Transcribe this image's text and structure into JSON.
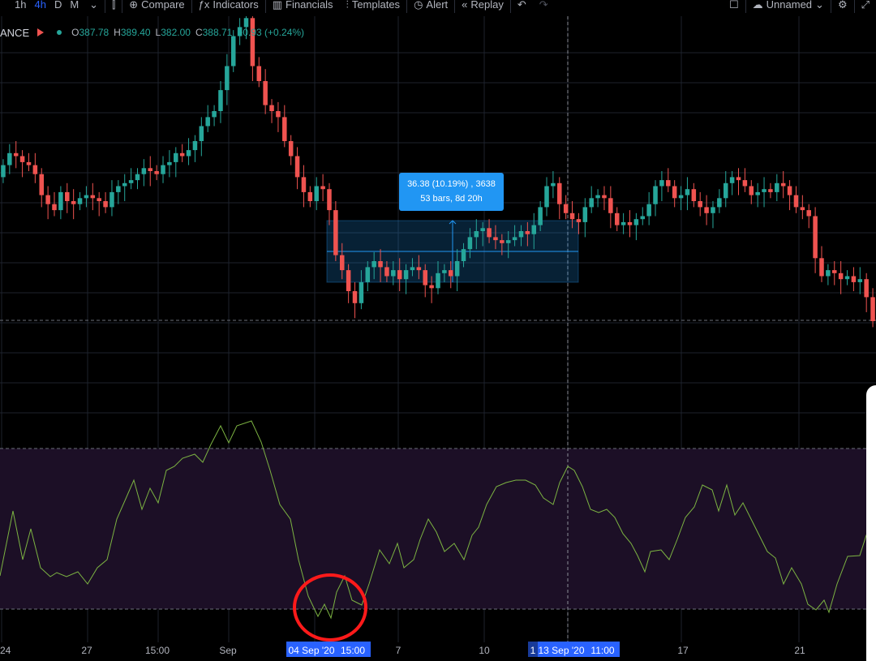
{
  "toolbar": {
    "intervals": [
      "1h",
      "4h",
      "D",
      "M"
    ],
    "active_interval": "4h",
    "compare": "Compare",
    "indicators": "Indicators",
    "financials": "Financials",
    "templates": "Templates",
    "alert": "Alert",
    "replay": "Replay",
    "layout_name": "Unnamed"
  },
  "legend": {
    "symbol": "ANCE",
    "o_label": "O",
    "o": "387.78",
    "h_label": "H",
    "h": "389.40",
    "l_label": "L",
    "l": "382.00",
    "c_label": "C",
    "c": "388.71",
    "change": "+0.93 (+0.24%)"
  },
  "measure": {
    "line1": "36.38 (10.19%) , 3638",
    "line2": "53 bars, 8d 20h"
  },
  "time_axis": {
    "labels": [
      "24",
      "27",
      "15:00",
      "Sep",
      "7",
      "10",
      "17",
      "21"
    ],
    "crosshair_label": "13 Sep '20",
    "crosshair_time": "11:00",
    "highlight_start": "04 Sep '20",
    "highlight_time": "15:00",
    "partial_label": "1"
  },
  "colors": {
    "up": "#26a69a",
    "down": "#ef5350",
    "oscillator": "#7cb342",
    "accent": "#2196f3",
    "circle": "#ff1a1a"
  },
  "chart_data": {
    "type": "candlestick",
    "price": {
      "o": [
        388,
        392,
        396,
        395,
        393,
        392,
        389,
        382,
        379,
        377,
        383,
        380,
        379,
        381,
        382,
        381,
        380,
        378,
        383,
        385,
        386,
        387,
        389,
        391,
        390,
        389,
        392,
        393,
        396,
        395,
        397,
        400,
        405,
        408,
        410,
        417,
        425,
        435,
        438,
        441,
        425,
        420,
        412,
        410,
        408,
        400,
        395,
        388,
        383,
        380,
        385,
        384,
        377,
        362,
        357,
        350,
        346,
        353,
        358,
        360,
        358,
        355,
        357,
        354,
        357,
        358,
        357,
        352,
        351,
        356,
        357,
        355,
        360,
        364,
        368,
        370,
        371,
        368,
        367,
        366,
        367,
        368,
        370,
        369,
        372,
        378,
        385,
        386,
        379,
        376,
        374,
        373,
        378,
        381,
        382,
        381,
        376,
        372,
        373,
        372,
        374,
        375,
        379,
        385,
        387,
        385,
        381,
        382,
        384,
        380,
        378,
        376,
        378,
        381,
        386,
        388,
        387,
        385,
        382,
        383,
        384,
        383,
        386,
        385,
        382,
        378,
        377,
        375,
        361,
        355,
        357,
        356,
        354,
        355,
        353,
        354,
        348
      ],
      "c": [
        392,
        396,
        395,
        393,
        392,
        389,
        382,
        379,
        377,
        383,
        380,
        379,
        381,
        382,
        381,
        380,
        378,
        383,
        385,
        386,
        387,
        389,
        391,
        390,
        389,
        392,
        393,
        396,
        395,
        397,
        400,
        405,
        408,
        410,
        417,
        425,
        435,
        438,
        441,
        425,
        420,
        412,
        410,
        408,
        400,
        395,
        388,
        383,
        380,
        385,
        384,
        377,
        362,
        357,
        350,
        346,
        353,
        358,
        360,
        358,
        355,
        357,
        354,
        357,
        358,
        357,
        352,
        351,
        356,
        357,
        355,
        360,
        364,
        368,
        370,
        371,
        368,
        367,
        366,
        367,
        368,
        370,
        369,
        372,
        378,
        385,
        386,
        379,
        376,
        374,
        373,
        378,
        381,
        382,
        381,
        376,
        372,
        373,
        372,
        374,
        375,
        379,
        385,
        387,
        385,
        381,
        382,
        384,
        380,
        378,
        376,
        378,
        381,
        386,
        388,
        387,
        385,
        382,
        383,
        384,
        383,
        386,
        385,
        382,
        378,
        377,
        375,
        361,
        355,
        357,
        356,
        354,
        355,
        353,
        354,
        348,
        340
      ]
    },
    "oscillator_bands": [
      70,
      30
    ],
    "measure_range": {
      "from": 345,
      "to": 382.5
    }
  }
}
